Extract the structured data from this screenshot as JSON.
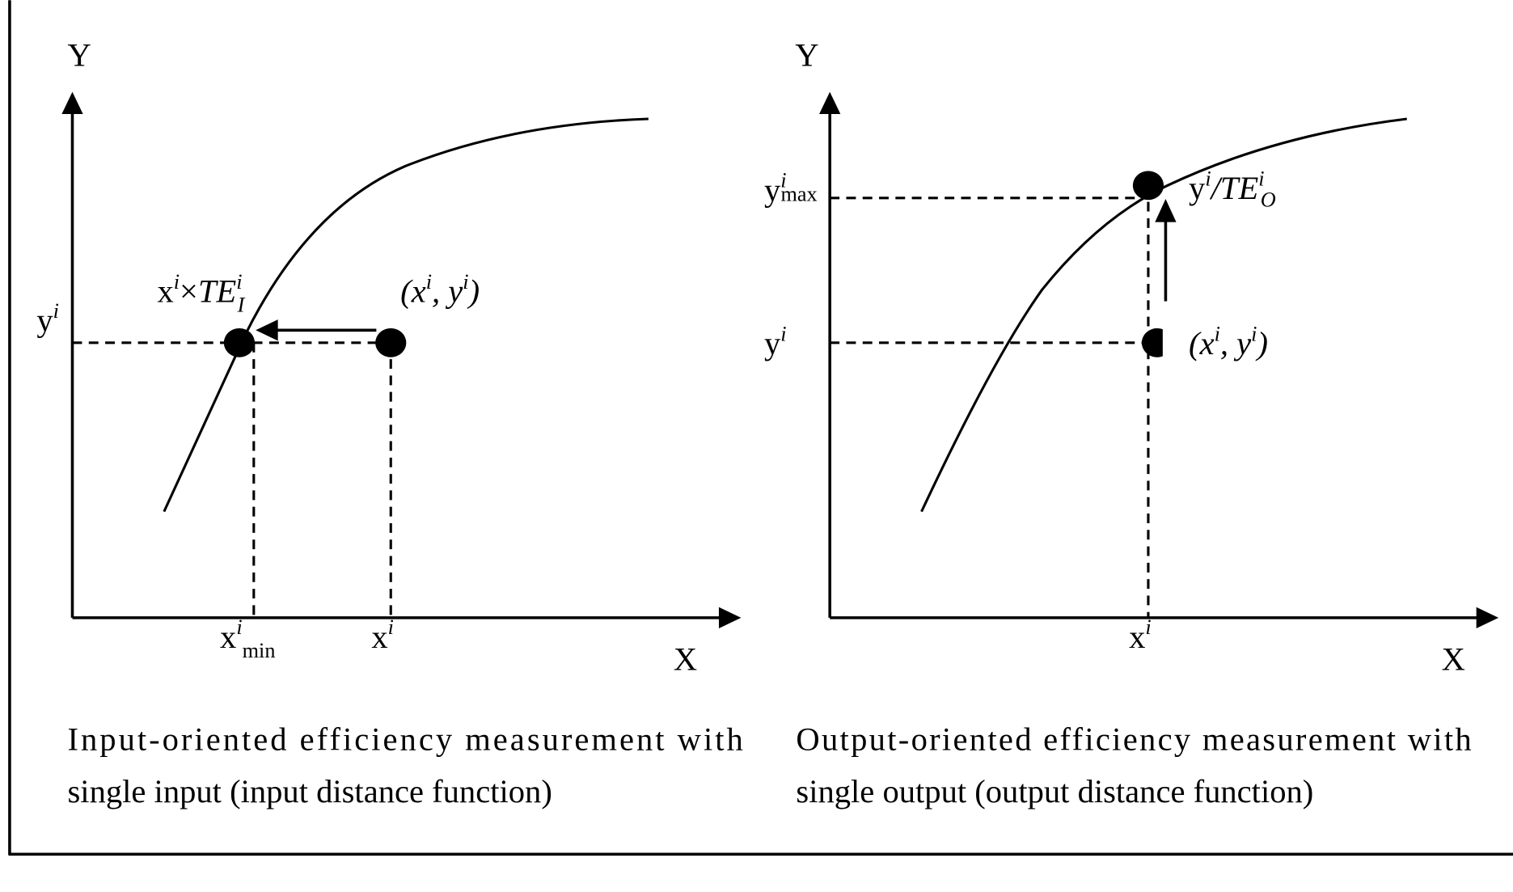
{
  "left_panel": {
    "y_axis_label": "Y",
    "x_axis_label": "X",
    "y_tick": {
      "base": "y",
      "sup": "i"
    },
    "x_tick_min": {
      "base": "x",
      "sup": "i",
      "sub": "min"
    },
    "x_tick": {
      "base": "x",
      "sup": "i"
    },
    "frontier_point_label": {
      "base": "x",
      "sup": "i",
      "times": "×",
      "te": "TE",
      "te_sup": "i",
      "te_sub": "I"
    },
    "observed_point_label": {
      "open": "(",
      "x": "x",
      "x_sup": "i",
      "comma": ", ",
      "y": "y",
      "y_sup": "i",
      "close": ")"
    },
    "caption_line1": "Input-oriented efficiency measurement with",
    "caption_line2": "single input (input distance function)"
  },
  "right_panel": {
    "y_axis_label": "Y",
    "x_axis_label": "X",
    "y_tick_max": {
      "base": "y",
      "sup": "i",
      "sub": "max"
    },
    "y_tick": {
      "base": "y",
      "sup": "i"
    },
    "x_tick": {
      "base": "x",
      "sup": "i"
    },
    "frontier_point_label": {
      "base": "y",
      "sup": "i",
      "slash": "/",
      "te": "TE",
      "te_sup": "i",
      "te_sub": "O"
    },
    "observed_point_label": {
      "open": "(",
      "x": "x",
      "x_sup": "i",
      "comma": ", ",
      "y": "y",
      "y_sup": "i",
      "close": ")"
    },
    "caption_line1": "Output-oriented efficiency measurement with",
    "caption_line2": "single output (output distance function)"
  }
}
